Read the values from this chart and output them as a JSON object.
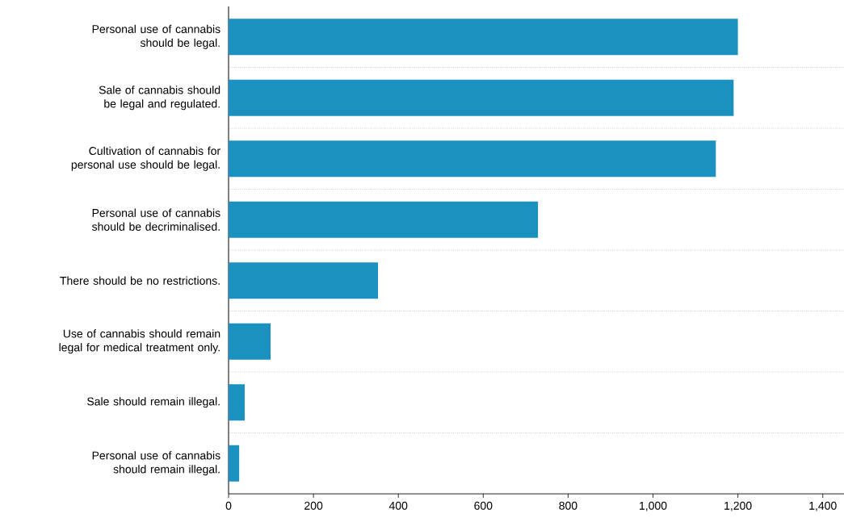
{
  "chart_data": {
    "type": "bar",
    "orientation": "horizontal",
    "categories": [
      "Personal use of cannabis should be legal.",
      "Sale of cannabis should be legal and regulated.",
      "Cultivation of cannabis for personal use should be legal.",
      "Personal use of cannabis should be decriminalised.",
      "There should be no restrictions.",
      "Use of cannabis should remain legal for medical treatment only.",
      "Sale should remain illegal.",
      "Personal use of cannabis should remain illegal."
    ],
    "values": [
      1200,
      1190,
      1148,
      729,
      352,
      99,
      38,
      25
    ],
    "color": "#1b91bf",
    "xlim": [
      0,
      1450
    ],
    "xticks": [
      0,
      200,
      400,
      600,
      800,
      {
        "value": 1000,
        "label": "1,000"
      },
      {
        "value": 1200,
        "label": "1,200"
      },
      {
        "value": 1400,
        "label": "1,400"
      }
    ],
    "grid": "y"
  }
}
